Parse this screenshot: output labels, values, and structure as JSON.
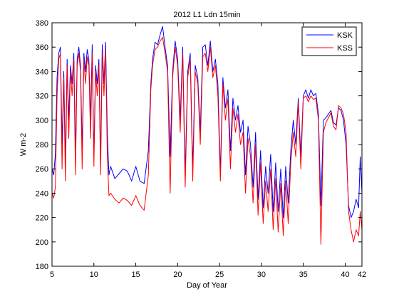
{
  "chart_data": {
    "type": "line",
    "title": "2012 L1 Ldn 15min",
    "xlabel": "Day of Year",
    "ylabel": "W m-2",
    "xlim": [
      5,
      42
    ],
    "ylim": [
      180,
      380
    ],
    "xticks": [
      5,
      10,
      15,
      20,
      25,
      30,
      35,
      40,
      42
    ],
    "yticks": [
      180,
      200,
      220,
      240,
      260,
      280,
      300,
      320,
      340,
      360,
      380
    ],
    "grid": false,
    "legend_position": "top-right",
    "series": [
      {
        "name": "KSK",
        "color": "#0000ff",
        "x": [
          5.0,
          5.2,
          5.4,
          5.6,
          5.8,
          6.0,
          6.2,
          6.4,
          6.6,
          6.8,
          7.0,
          7.2,
          7.4,
          7.6,
          7.8,
          8.0,
          8.2,
          8.4,
          8.6,
          8.8,
          9.0,
          9.2,
          9.4,
          9.6,
          9.8,
          10.0,
          10.2,
          10.4,
          10.6,
          10.8,
          11.0,
          11.2,
          11.4,
          11.6,
          11.8,
          12.0,
          12.5,
          13.0,
          13.5,
          14.0,
          14.5,
          15.0,
          15.5,
          16.0,
          16.5,
          16.8,
          17.0,
          17.3,
          17.6,
          17.9,
          18.2,
          18.5,
          18.8,
          19.1,
          19.4,
          19.7,
          20.0,
          20.3,
          20.6,
          20.9,
          21.2,
          21.5,
          21.8,
          22.1,
          22.4,
          22.7,
          23.0,
          23.3,
          23.6,
          23.9,
          24.2,
          24.5,
          24.8,
          25.1,
          25.4,
          25.7,
          26.0,
          26.3,
          26.6,
          26.9,
          27.2,
          27.5,
          27.8,
          28.1,
          28.4,
          28.7,
          29.0,
          29.3,
          29.6,
          29.9,
          30.2,
          30.5,
          30.8,
          31.1,
          31.4,
          31.7,
          32.0,
          32.3,
          32.6,
          32.9,
          33.2,
          33.5,
          33.8,
          34.1,
          34.4,
          34.7,
          35.0,
          35.3,
          35.6,
          35.9,
          36.2,
          36.5,
          36.8,
          37.1,
          37.4,
          37.7,
          38.0,
          38.3,
          38.6,
          38.9,
          39.2,
          39.5,
          39.8,
          40.1,
          40.4,
          40.7,
          41.0,
          41.3,
          41.6,
          41.8,
          42.0
        ],
        "y": [
          260,
          255,
          272,
          335,
          355,
          360,
          280,
          340,
          265,
          350,
          300,
          345,
          330,
          355,
          270,
          350,
          360,
          345,
          275,
          355,
          340,
          358,
          350,
          300,
          362,
          270,
          345,
          330,
          350,
          265,
          362,
          330,
          364,
          290,
          255,
          262,
          252,
          256,
          260,
          258,
          250,
          262,
          250,
          248,
          275,
          330,
          350,
          364,
          362,
          370,
          377,
          360,
          345,
          270,
          340,
          365,
          350,
          300,
          360,
          255,
          340,
          355,
          260,
          345,
          335,
          290,
          360,
          362,
          345,
          365,
          340,
          350,
          330,
          258,
          335,
          310,
          325,
          275,
          318,
          300,
          312,
          290,
          300,
          255,
          295,
          280,
          245,
          290,
          235,
          275,
          228,
          262,
          240,
          272,
          225,
          265,
          225,
          260,
          220,
          262,
          232,
          275,
          300,
          280,
          318,
          270,
          320,
          325,
          318,
          325,
          320,
          322,
          305,
          230,
          300,
          302,
          305,
          308,
          298,
          296,
          310,
          308,
          300,
          280,
          230,
          220,
          225,
          235,
          228,
          270,
          240
        ]
      },
      {
        "name": "KSS",
        "color": "#ff0000",
        "x": [
          5.0,
          5.2,
          5.4,
          5.6,
          5.8,
          6.0,
          6.2,
          6.4,
          6.6,
          6.8,
          7.0,
          7.2,
          7.4,
          7.6,
          7.8,
          8.0,
          8.2,
          8.4,
          8.6,
          8.8,
          9.0,
          9.2,
          9.4,
          9.6,
          9.8,
          10.0,
          10.2,
          10.4,
          10.6,
          10.8,
          11.0,
          11.2,
          11.4,
          11.6,
          11.8,
          12.0,
          12.5,
          13.0,
          13.5,
          14.0,
          14.5,
          15.0,
          15.5,
          16.0,
          16.5,
          16.8,
          17.0,
          17.3,
          17.6,
          17.9,
          18.2,
          18.5,
          18.8,
          19.1,
          19.4,
          19.7,
          20.0,
          20.3,
          20.6,
          20.9,
          21.2,
          21.5,
          21.8,
          22.1,
          22.4,
          22.7,
          23.0,
          23.3,
          23.6,
          23.9,
          24.2,
          24.5,
          24.8,
          25.1,
          25.4,
          25.7,
          26.0,
          26.3,
          26.6,
          26.9,
          27.2,
          27.5,
          27.8,
          28.1,
          28.4,
          28.7,
          29.0,
          29.3,
          29.6,
          29.9,
          30.2,
          30.5,
          30.8,
          31.1,
          31.4,
          31.7,
          32.0,
          32.3,
          32.6,
          32.9,
          33.2,
          33.5,
          33.8,
          34.1,
          34.4,
          34.7,
          35.0,
          35.3,
          35.6,
          35.9,
          36.2,
          36.5,
          36.8,
          37.1,
          37.4,
          37.7,
          38.0,
          38.3,
          38.6,
          38.9,
          39.2,
          39.5,
          39.8,
          40.1,
          40.4,
          40.7,
          41.0,
          41.3,
          41.6,
          41.8,
          42.0
        ],
        "y": [
          240,
          236,
          245,
          320,
          350,
          355,
          260,
          335,
          250,
          345,
          285,
          340,
          320,
          350,
          255,
          345,
          355,
          340,
          260,
          350,
          330,
          352,
          345,
          285,
          355,
          262,
          340,
          320,
          345,
          255,
          355,
          320,
          358,
          270,
          238,
          240,
          235,
          232,
          236,
          234,
          230,
          238,
          230,
          226,
          255,
          325,
          345,
          358,
          360,
          365,
          368,
          355,
          340,
          240,
          335,
          360,
          345,
          290,
          355,
          245,
          335,
          350,
          250,
          340,
          330,
          280,
          352,
          355,
          340,
          360,
          335,
          345,
          320,
          250,
          330,
          300,
          318,
          260,
          310,
          290,
          305,
          280,
          290,
          240,
          285,
          270,
          232,
          280,
          222,
          265,
          215,
          250,
          225,
          260,
          210,
          252,
          208,
          248,
          205,
          250,
          215,
          265,
          290,
          270,
          315,
          260,
          318,
          320,
          315,
          320,
          317,
          318,
          300,
          198,
          290,
          298,
          302,
          306,
          295,
          292,
          312,
          310,
          305,
          290,
          225,
          210,
          200,
          210,
          205,
          225,
          210
        ]
      }
    ]
  }
}
